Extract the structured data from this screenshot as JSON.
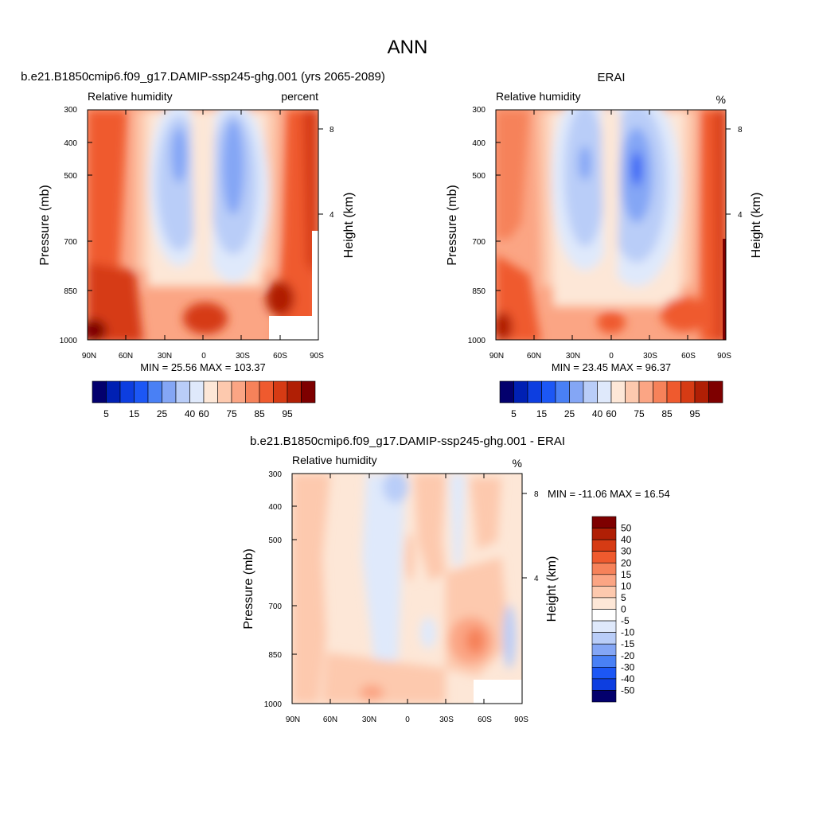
{
  "page_title": "ANN",
  "panels": [
    {
      "title": "b.e21.B1850cmip6.f09_g17.DAMIP-ssp245-ghg.001 (yrs 2065-2089)",
      "subtitle_left": "Relative humidity",
      "subtitle_right": "percent",
      "stats": "MIN =  25.56  MAX = 103.37"
    },
    {
      "title": "ERAI",
      "subtitle_left": "Relative humidity",
      "subtitle_right": "%",
      "stats": "MIN =  23.45  MAX =  96.37"
    },
    {
      "title": "b.e21.B1850cmip6.f09_g17.DAMIP-ssp245-ghg.001 - ERAI",
      "subtitle_left": "Relative humidity",
      "subtitle_right": "%",
      "stats": "MIN = -11.06  MAX =  16.54"
    }
  ],
  "axes": {
    "ylabel_left": "Pressure (mb)",
    "ylabel_right": "Height (km)",
    "pressure_ticks": [
      "300",
      "400",
      "500",
      "700",
      "850",
      "1000"
    ],
    "height_ticks": [
      "8",
      "4"
    ],
    "lat_ticks": [
      "90N",
      "60N",
      "30N",
      "0",
      "30S",
      "60S",
      "90S"
    ]
  },
  "colorbars": {
    "abs_labels": [
      "5",
      "15",
      "25",
      "40",
      "60",
      "75",
      "85",
      "95"
    ],
    "diff_labels": [
      "50",
      "40",
      "30",
      "20",
      "15",
      "10",
      "5",
      "0",
      "-5",
      "-10",
      "-15",
      "-20",
      "-30",
      "-40",
      "-50"
    ],
    "abs_colors": [
      "#03006d",
      "#0020b3",
      "#0d3ee0",
      "#1c57f5",
      "#4980f5",
      "#84a6f5",
      "#b9cdf8",
      "#dfe9fb",
      "#fde7d7",
      "#fdc9ae",
      "#fba584",
      "#f6825a",
      "#ef5a2e",
      "#d63b14",
      "#b01f05",
      "#7e0000"
    ],
    "diff_colors": [
      "#7e0000",
      "#b01f05",
      "#d63b14",
      "#ef5a2e",
      "#f6825a",
      "#fba584",
      "#fdc9ae",
      "#fde7d7",
      "#ffffff",
      "#dfe9fb",
      "#b9cdf8",
      "#84a6f5",
      "#4980f5",
      "#1c57f5",
      "#0d3ee0",
      "#03006d"
    ]
  },
  "chart_data": [
    {
      "type": "heatmap",
      "title": "b.e21.B1850cmip6.f09_g17.DAMIP-ssp245-ghg.001 (yrs 2065-2089)",
      "subtitle": "Relative humidity",
      "units": "percent",
      "xlabel": "",
      "ylabel": "Pressure (mb)",
      "ylabel_right": "Height (km)",
      "x_ticks": [
        "90N",
        "60N",
        "30N",
        "0",
        "30S",
        "60S",
        "90S"
      ],
      "y_ticks": [
        300,
        400,
        500,
        700,
        850,
        1000
      ],
      "y_log": true,
      "min": 25.56,
      "max": 103.37,
      "levels": [
        5,
        10,
        15,
        20,
        25,
        30,
        40,
        50,
        60,
        70,
        75,
        80,
        85,
        90,
        95
      ],
      "lat": [
        90,
        60,
        30,
        0,
        -30,
        -60,
        -90
      ],
      "pressure": [
        300,
        400,
        500,
        700,
        850,
        1000
      ],
      "values": [
        [
          85,
          75,
          55,
          40,
          45,
          70,
          88
        ],
        [
          87,
          72,
          45,
          40,
          38,
          65,
          90
        ],
        [
          86,
          70,
          45,
          55,
          40,
          68,
          90
        ],
        [
          88,
          75,
          50,
          65,
          48,
          80,
          92
        ],
        [
          92,
          85,
          70,
          75,
          72,
          90,
          95
        ],
        [
          97,
          90,
          85,
          88,
          85,
          90,
          95
        ]
      ]
    },
    {
      "type": "heatmap",
      "title": "ERAI",
      "subtitle": "Relative humidity",
      "units": "%",
      "xlabel": "",
      "ylabel": "Pressure (mb)",
      "ylabel_right": "Height (km)",
      "x_ticks": [
        "90N",
        "60N",
        "30N",
        "0",
        "30S",
        "60S",
        "90S"
      ],
      "y_ticks": [
        300,
        400,
        500,
        700,
        850,
        1000
      ],
      "y_log": true,
      "min": 23.45,
      "max": 96.37,
      "levels": [
        5,
        10,
        15,
        20,
        25,
        30,
        40,
        50,
        60,
        70,
        75,
        80,
        85,
        90,
        95
      ],
      "lat": [
        90,
        60,
        30,
        0,
        -30,
        -60,
        -90
      ],
      "pressure": [
        300,
        400,
        500,
        700,
        850,
        1000
      ],
      "values": [
        [
          80,
          70,
          55,
          45,
          50,
          70,
          88
        ],
        [
          82,
          65,
          40,
          50,
          30,
          60,
          90
        ],
        [
          82,
          62,
          40,
          55,
          25,
          62,
          88
        ],
        [
          85,
          70,
          48,
          62,
          40,
          72,
          92
        ],
        [
          90,
          80,
          70,
          72,
          70,
          85,
          94
        ],
        [
          94,
          85,
          80,
          82,
          84,
          88,
          94
        ]
      ]
    },
    {
      "type": "heatmap",
      "title": "b.e21.B1850cmip6.f09_g17.DAMIP-ssp245-ghg.001 - ERAI",
      "subtitle": "Relative humidity",
      "units": "%",
      "xlabel": "",
      "ylabel": "Pressure (mb)",
      "ylabel_right": "Height (km)",
      "x_ticks": [
        "90N",
        "60N",
        "30N",
        "0",
        "30S",
        "60S",
        "90S"
      ],
      "y_ticks": [
        300,
        400,
        500,
        700,
        850,
        1000
      ],
      "y_log": true,
      "min": -11.06,
      "max": 16.54,
      "levels": [
        -50,
        -40,
        -30,
        -20,
        -15,
        -10,
        -5,
        0,
        5,
        10,
        15,
        20,
        30,
        40,
        50
      ],
      "lat": [
        90,
        60,
        30,
        0,
        -30,
        -60,
        -90
      ],
      "pressure": [
        300,
        400,
        500,
        700,
        850,
        1000
      ],
      "values": [
        [
          4,
          3,
          2,
          -5,
          2,
          0,
          3
        ],
        [
          5,
          4,
          3,
          -3,
          6,
          3,
          2
        ],
        [
          4,
          5,
          3,
          2,
          8,
          5,
          2
        ],
        [
          4,
          4,
          1,
          3,
          6,
          8,
          -2
        ],
        [
          3,
          4,
          1,
          3,
          4,
          10,
          -3
        ],
        [
          4,
          5,
          4,
          3,
          2,
          4,
          2
        ]
      ]
    }
  ]
}
